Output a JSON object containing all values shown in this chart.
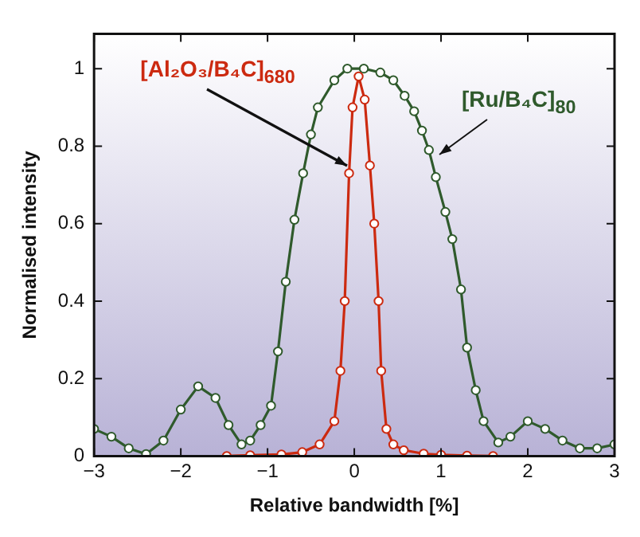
{
  "chart_data": {
    "type": "line",
    "xlabel": "Relative bandwidth [%]",
    "ylabel": "Normalised intensity",
    "xlim": [
      -3,
      3
    ],
    "xticks": [
      -3,
      -2,
      -1,
      0,
      1,
      2,
      3
    ],
    "ylim": [
      0,
      1.09
    ],
    "yticks": [
      0,
      0.2,
      0.4,
      0.6,
      0.8,
      1
    ],
    "grid": false,
    "legend": false,
    "marker": "circle",
    "line_style": "solid",
    "series": [
      {
        "color": "#cc2a10",
        "x": [
          -1.47,
          -1.2,
          -0.84,
          -0.6,
          -0.4,
          -0.23,
          -0.16,
          -0.11,
          -0.06,
          -0.02,
          0.05,
          0.12,
          0.18,
          0.23,
          0.28,
          0.31,
          0.37,
          0.45,
          0.57,
          0.8,
          1.0,
          1.3,
          1.6
        ],
        "values": [
          0,
          0.002,
          0.004,
          0.01,
          0.03,
          0.09,
          0.22,
          0.4,
          0.73,
          0.9,
          0.98,
          0.92,
          0.75,
          0.6,
          0.4,
          0.22,
          0.07,
          0.03,
          0.015,
          0.006,
          0.003,
          0.001,
          0
        ]
      },
      {
        "color": "#2f5a2c",
        "x": [
          -3,
          -2.8,
          -2.6,
          -2.4,
          -2.2,
          -2.0,
          -1.8,
          -1.6,
          -1.45,
          -1.3,
          -1.2,
          -1.08,
          -0.96,
          -0.88,
          -0.79,
          -0.69,
          -0.59,
          -0.5,
          -0.42,
          -0.23,
          -0.08,
          0.11,
          0.3,
          0.45,
          0.58,
          0.69,
          0.78,
          0.86,
          0.94,
          1.05,
          1.13,
          1.23,
          1.3,
          1.4,
          1.49,
          1.66,
          1.8,
          2.0,
          2.2,
          2.4,
          2.6,
          2.8,
          3.0
        ],
        "values": [
          0.07,
          0.05,
          0.02,
          0.005,
          0.04,
          0.12,
          0.18,
          0.15,
          0.08,
          0.03,
          0.04,
          0.08,
          0.13,
          0.27,
          0.45,
          0.61,
          0.73,
          0.83,
          0.9,
          0.97,
          1.0,
          1.0,
          0.99,
          0.97,
          0.93,
          0.89,
          0.84,
          0.79,
          0.72,
          0.63,
          0.56,
          0.43,
          0.28,
          0.17,
          0.09,
          0.035,
          0.05,
          0.09,
          0.07,
          0.04,
          0.02,
          0.02,
          0.03
        ]
      }
    ],
    "annotations": [
      {
        "text": "[Al₂O₃/B₄C]$_{680}$",
        "x": -0.08,
        "y": 0.75
      },
      {
        "text": "[Ru/B₄C]$_{80}$",
        "x": 0.98,
        "y": 0.78
      }
    ]
  }
}
